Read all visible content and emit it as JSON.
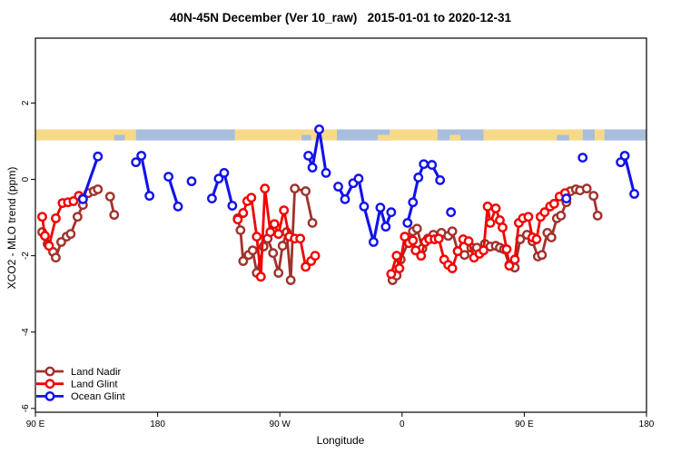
{
  "title": "40N-45N December (Ver 10_raw)   2015-01-01 to 2020-12-31",
  "chart_data": {
    "type": "line",
    "title": "40N-45N December (Ver 10_raw)   2015-01-01 to 2020-12-31",
    "xlabel": "Longitude",
    "ylabel": "XCO2 - MLO trend (ppm)",
    "grid": "off",
    "x_axis": {
      "range_deg": [
        0,
        450
      ],
      "ticks": [
        {
          "deg": 0,
          "label": "90 E"
        },
        {
          "deg": 90,
          "label": "180"
        },
        {
          "deg": 180,
          "label": "90 W"
        },
        {
          "deg": 270,
          "label": "0"
        },
        {
          "deg": 360,
          "label": "90 E"
        },
        {
          "deg": 450,
          "label": "180"
        }
      ]
    },
    "y_axis": {
      "range": [
        -6.1,
        3.7
      ],
      "ticks": [
        2,
        0,
        -2,
        -4,
        -6
      ]
    },
    "map_band": {
      "ppm_top": 1.31,
      "ppm_bottom": 1.02,
      "land_color": "#F8D988",
      "ocean_color": "#A9BEDC",
      "segments": [
        {
          "type": "land",
          "from": 0,
          "to": 74
        },
        {
          "type": "ocean",
          "from": 74,
          "to": 147
        },
        {
          "type": "land",
          "from": 147,
          "to": 222
        },
        {
          "type": "ocean",
          "from": 222,
          "to": 261
        },
        {
          "type": "land",
          "from": 261,
          "to": 296
        },
        {
          "type": "ocean",
          "from": 296,
          "to": 330
        },
        {
          "type": "land",
          "from": 330,
          "to": 403
        },
        {
          "type": "ocean",
          "from": 403,
          "to": 412
        },
        {
          "type": "land",
          "from": 412,
          "to": 419
        },
        {
          "type": "ocean",
          "from": 419,
          "to": 450
        }
      ],
      "patches": [
        {
          "type": "ocean",
          "from": 58,
          "to": 66,
          "pos": "bottom"
        },
        {
          "type": "ocean",
          "from": 196,
          "to": 203,
          "pos": "bottom"
        },
        {
          "type": "land",
          "from": 305,
          "to": 313,
          "pos": "bottom"
        },
        {
          "type": "ocean",
          "from": 384,
          "to": 393,
          "pos": "bottom"
        },
        {
          "type": "land",
          "from": 252,
          "to": 261,
          "pos": "bottom"
        }
      ]
    },
    "legend": {
      "position": "bottom-left",
      "entries": [
        "Land Nadir",
        "Land Glint",
        "Ocean Glint"
      ]
    },
    "series": [
      {
        "name": "Land Nadir",
        "color": "#A0322C",
        "width": 2.8,
        "segments": [
          [
            [
              5,
              -1.38
            ],
            [
              9,
              -1.69
            ],
            [
              13,
              -1.9
            ],
            [
              15,
              -2.05
            ],
            [
              19,
              -1.64
            ],
            [
              23,
              -1.5
            ],
            [
              26,
              -1.43
            ],
            [
              31,
              -0.98
            ],
            [
              35,
              -0.67
            ],
            [
              39,
              -0.36
            ],
            [
              43,
              -0.31
            ],
            [
              46,
              -0.26
            ]
          ],
          [
            [
              55,
              -0.45
            ],
            [
              58,
              -0.93
            ]
          ],
          [
            [
              149,
              -1.02
            ],
            [
              151,
              -1.33
            ],
            [
              153,
              -2.14
            ],
            [
              157,
              -1.98
            ],
            [
              160,
              -1.86
            ],
            [
              163,
              -2.45
            ],
            [
              168,
              -1.76
            ],
            [
              171,
              -1.55
            ],
            [
              175,
              -1.93
            ],
            [
              179,
              -2.45
            ],
            [
              182,
              -1.74
            ],
            [
              185,
              -1.38
            ],
            [
              188,
              -2.64
            ],
            [
              191,
              -0.24
            ],
            [
              199,
              -0.31
            ],
            [
              204,
              -1.14
            ]
          ],
          [
            [
              263,
              -2.64
            ],
            [
              266,
              -2.52
            ],
            [
              269,
              -2.1
            ],
            [
              278,
              -1.36
            ],
            [
              281,
              -1.29
            ],
            [
              285,
              -1.81
            ],
            [
              289,
              -1.55
            ],
            [
              293,
              -1.45
            ],
            [
              299,
              -1.4
            ],
            [
              304,
              -1.48
            ],
            [
              307,
              -1.36
            ],
            [
              311,
              -1.88
            ],
            [
              316,
              -1.98
            ],
            [
              321,
              -1.79
            ],
            [
              325,
              -1.79
            ],
            [
              331,
              -1.69
            ],
            [
              335,
              -1.76
            ],
            [
              339,
              -1.74
            ],
            [
              342,
              -1.79
            ],
            [
              345,
              -1.83
            ],
            [
              349,
              -2.24
            ],
            [
              353,
              -2.31
            ],
            [
              357,
              -1.57
            ],
            [
              362,
              -1.45
            ],
            [
              366,
              -1.62
            ],
            [
              370,
              -2.02
            ],
            [
              373,
              -1.98
            ],
            [
              377,
              -1.4
            ],
            [
              380,
              -1.52
            ],
            [
              384,
              -1.02
            ],
            [
              387,
              -0.95
            ],
            [
              391,
              -0.6
            ],
            [
              394,
              -0.31
            ],
            [
              398,
              -0.26
            ],
            [
              401,
              -0.29
            ],
            [
              406,
              -0.24
            ]
          ],
          [
            [
              411,
              -0.43
            ],
            [
              414,
              -0.95
            ]
          ]
        ]
      },
      {
        "name": "Land Glint",
        "color": "#F40000",
        "width": 2.8,
        "segments": [
          [
            [
              5,
              -0.98
            ],
            [
              7,
              -1.48
            ],
            [
              10,
              -1.74
            ],
            [
              15,
              -1.02
            ],
            [
              20,
              -0.62
            ],
            [
              24,
              -0.6
            ],
            [
              28,
              -0.57
            ],
            [
              32,
              -0.43
            ],
            [
              35,
              -0.5
            ]
          ],
          [
            [
              149,
              -1.05
            ],
            [
              153,
              -0.88
            ],
            [
              156,
              -0.57
            ],
            [
              159,
              -0.48
            ],
            [
              163,
              -1.5
            ],
            [
              166,
              -2.55
            ],
            [
              169,
              -0.24
            ],
            [
              173,
              -1.38
            ],
            [
              176,
              -1.17
            ],
            [
              179,
              -1.43
            ],
            [
              183,
              -0.81
            ],
            [
              187,
              -1.5
            ],
            [
              191,
              -1.55
            ],
            [
              195,
              -1.55
            ],
            [
              199,
              -2.29
            ],
            [
              203,
              -2.14
            ],
            [
              206,
              -2.0
            ]
          ],
          [
            [
              262,
              -2.48
            ],
            [
              266,
              -2.0
            ],
            [
              268,
              -2.33
            ],
            [
              272,
              -1.5
            ],
            [
              275,
              -1.67
            ],
            [
              278,
              -1.6
            ],
            [
              280,
              -1.86
            ],
            [
              284,
              -2.0
            ],
            [
              287,
              -1.64
            ],
            [
              290,
              -1.57
            ],
            [
              294,
              -1.57
            ],
            [
              297,
              -1.55
            ],
            [
              301,
              -2.1
            ],
            [
              304,
              -2.24
            ],
            [
              307,
              -2.33
            ],
            [
              311,
              -1.88
            ],
            [
              315,
              -1.57
            ],
            [
              319,
              -1.62
            ],
            [
              323,
              -2.05
            ],
            [
              327,
              -1.95
            ],
            [
              330,
              -1.86
            ],
            [
              333,
              -0.71
            ],
            [
              335,
              -1.14
            ],
            [
              339,
              -0.76
            ],
            [
              342,
              -1.07
            ],
            [
              344,
              -1.26
            ],
            [
              347,
              -1.83
            ],
            [
              349,
              -2.26
            ],
            [
              353,
              -2.1
            ],
            [
              356,
              -1.14
            ],
            [
              359,
              -1.02
            ],
            [
              363,
              -0.98
            ],
            [
              366,
              -1.52
            ],
            [
              369,
              -1.57
            ],
            [
              372,
              -0.98
            ],
            [
              375,
              -0.86
            ],
            [
              379,
              -0.71
            ],
            [
              382,
              -0.64
            ],
            [
              386,
              -0.45
            ],
            [
              390,
              -0.36
            ]
          ]
        ]
      },
      {
        "name": "Ocean Glint",
        "color": "#1212EB",
        "width": 3.1,
        "segments": [
          [
            [
              35,
              -0.52
            ],
            [
              46,
              0.6
            ]
          ],
          [
            [
              74,
              0.45
            ],
            [
              78,
              0.62
            ],
            [
              84,
              -0.43
            ]
          ],
          [
            [
              98,
              0.07
            ],
            [
              105,
              -0.71
            ]
          ],
          [
            [
              115,
              -0.05
            ]
          ],
          [
            [
              130,
              -0.5
            ],
            [
              135,
              0.02
            ],
            [
              139,
              0.17
            ],
            [
              145,
              -0.69
            ]
          ],
          [
            [
              201,
              0.62
            ],
            [
              204,
              0.31
            ],
            [
              209,
              1.31
            ],
            [
              214,
              0.17
            ]
          ],
          [
            [
              223,
              -0.19
            ],
            [
              228,
              -0.52
            ],
            [
              234,
              -0.1
            ],
            [
              238,
              0.02
            ],
            [
              242,
              -0.71
            ],
            [
              249,
              -1.64
            ],
            [
              254,
              -0.74
            ],
            [
              258,
              -1.24
            ],
            [
              262,
              -0.86
            ]
          ],
          [
            [
              274,
              -1.14
            ],
            [
              278,
              -0.6
            ],
            [
              282,
              0.05
            ],
            [
              286,
              0.4
            ],
            [
              292,
              0.38
            ],
            [
              298,
              -0.02
            ]
          ],
          [
            [
              306,
              -0.86
            ]
          ],
          [
            [
              391,
              -0.5
            ]
          ],
          [
            [
              403,
              0.57
            ]
          ],
          [
            [
              431,
              0.45
            ],
            [
              434,
              0.62
            ],
            [
              441,
              -0.38
            ]
          ]
        ]
      }
    ]
  }
}
